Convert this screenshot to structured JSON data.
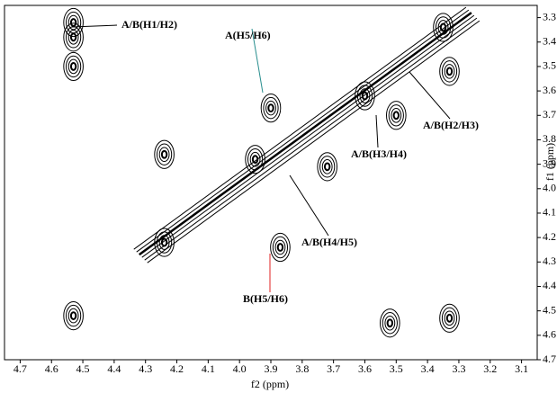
{
  "chart_data": {
    "type": "contour",
    "x_label": "f2 (ppm)",
    "y_label": "f1 (ppm)",
    "xlim": [
      4.75,
      3.05
    ],
    "ylim": [
      3.25,
      4.7
    ],
    "xticks": [
      4.7,
      4.6,
      4.5,
      4.4,
      4.3,
      4.2,
      4.1,
      {
        "value": 4,
        "label": "4.0"
      },
      3.9,
      3.8,
      3.7,
      3.6,
      3.5,
      3.4,
      3.3,
      3.2,
      3.1
    ],
    "yticks": [
      3.3,
      3.4,
      3.5,
      3.6,
      3.7,
      3.8,
      3.9,
      {
        "value": 4,
        "label": "4.0"
      },
      4.1,
      4.2,
      4.3,
      4.4,
      4.5,
      4.6,
      4.7
    ],
    "x": [
      4.53,
      4.53,
      4.53,
      4.24,
      4.24,
      3.87,
      4.53,
      3.33,
      3.52,
      3.33,
      3.35,
      3.9,
      3.5,
      3.72,
      3.95,
      3.6
    ],
    "y": [
      3.32,
      3.38,
      3.5,
      3.86,
      4.22,
      4.24,
      4.52,
      4.53,
      4.55,
      3.52,
      3.34,
      3.67,
      3.7,
      3.91,
      3.88,
      3.62
    ],
    "color": "#000000",
    "annotations": [
      {
        "text": "A/B(H1/H2)",
        "color": "#000000"
      },
      {
        "text": "A(H5/H6)",
        "color": "#2a8f8f"
      },
      {
        "text": "A/B(H2/H3)",
        "color": "#000000"
      },
      {
        "text": "A/B(H3/H4)",
        "color": "#000000"
      },
      {
        "text": "A/B(H4/H5)",
        "color": "#000000"
      },
      {
        "text": "B(H5/H6)",
        "color": "#e02020"
      }
    ]
  }
}
